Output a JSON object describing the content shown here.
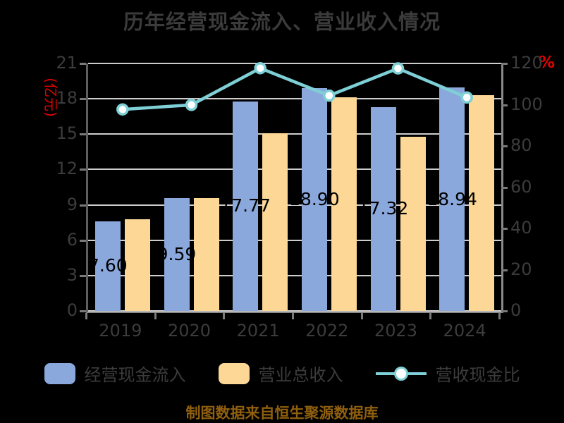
{
  "chart_data": {
    "type": "bar",
    "title": "历年经营现金流入、营业收入情况",
    "categories": [
      "2019",
      "2020",
      "2021",
      "2022",
      "2023",
      "2024"
    ],
    "series": [
      {
        "name": "经营现金流入",
        "type": "bar",
        "axis": "left",
        "color": "#8aa8dc",
        "values": [
          7.6,
          9.59,
          17.77,
          18.9,
          17.32,
          18.94
        ],
        "labels": [
          "7.60",
          "9.59",
          "17.77",
          "18.90",
          "17.32",
          "18.94"
        ]
      },
      {
        "name": "营业总收入",
        "type": "bar",
        "axis": "left",
        "color": "#fcd795",
        "values": [
          7.78,
          9.6,
          15.1,
          18.1,
          14.8,
          18.3
        ]
      },
      {
        "name": "营收现金比",
        "type": "line",
        "axis": "right",
        "color": "#7ed0d6",
        "marker": "circle",
        "values": [
          97.7,
          99.9,
          117.7,
          104.4,
          117.6,
          103.5
        ]
      }
    ],
    "left_axis": {
      "unit": "(亿元)",
      "min": 0,
      "max": 21,
      "ticks": [
        0,
        3,
        6,
        9,
        12,
        15,
        18,
        21
      ]
    },
    "right_axis": {
      "unit": "%",
      "min": 0,
      "max": 120,
      "ticks": [
        0,
        20,
        40,
        60,
        80,
        100,
        120
      ]
    },
    "grid": true,
    "legend_position": "bottom"
  },
  "legend": {
    "items": [
      {
        "label": "经营现金流入",
        "type": "bar",
        "color": "#8aa8dc"
      },
      {
        "label": "营业总收入",
        "type": "bar",
        "color": "#fcd795"
      },
      {
        "label": "营收现金比",
        "type": "line",
        "color": "#7ed0d6"
      }
    ]
  },
  "footer": {
    "text": "制图数据来自恒生聚源数据库"
  },
  "colors": {
    "background": "#000000",
    "title_text": "#3b3b3b",
    "axis_text": "#3c3c3c",
    "unit_text": "#e60000",
    "bar_label_text": "#000000",
    "footer_text": "#8f5f0e",
    "gridline": "#cdcdcd"
  }
}
